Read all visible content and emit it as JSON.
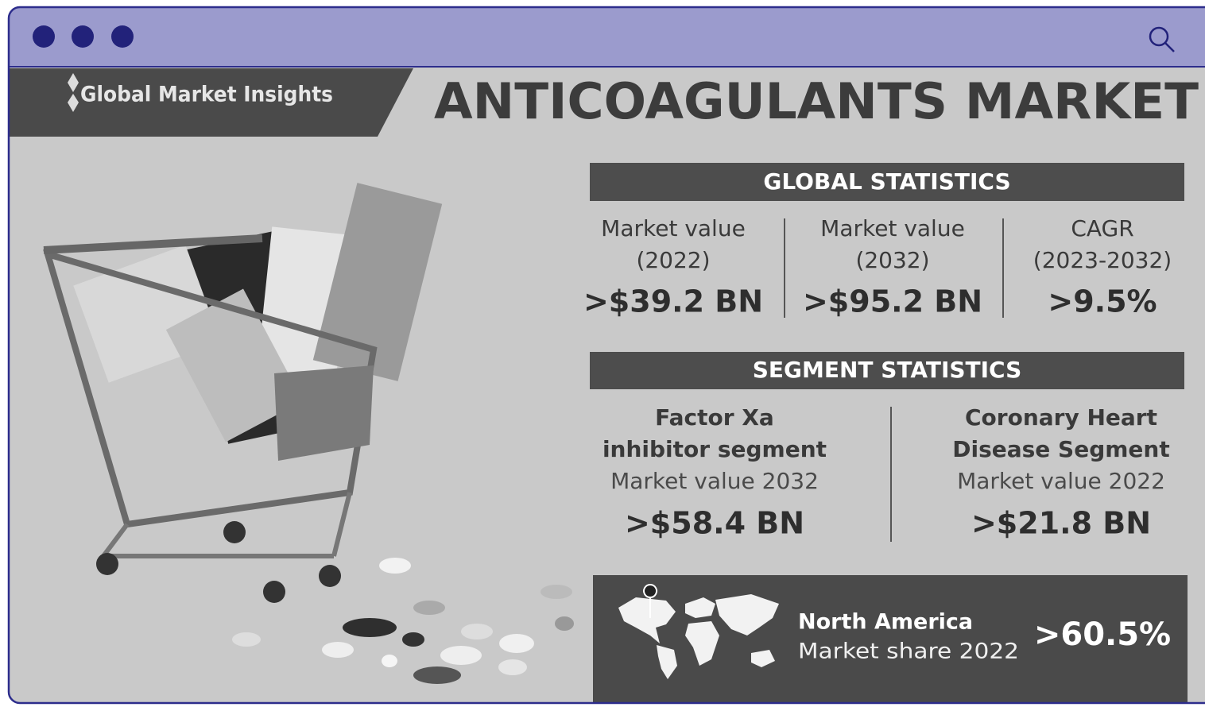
{
  "header": {
    "logo": "Global Market Insights",
    "title": "ANTICOAGULANTS MARKET"
  },
  "global_statistics": {
    "heading": "GLOBAL STATISTICS",
    "items": [
      {
        "label": [
          "Market value",
          "(2022)"
        ],
        "value": ">$39.2 BN"
      },
      {
        "label": [
          "Market value",
          "(2032)"
        ],
        "value": ">$95.2 BN"
      },
      {
        "label": [
          "CAGR",
          "(2023-2032)"
        ],
        "value": ">9.5%"
      }
    ]
  },
  "segment_statistics": {
    "heading": "SEGMENT STATISTICS",
    "items": [
      {
        "name": [
          "Factor Xa",
          "inhibitor segment"
        ],
        "metric": "Market value 2032",
        "value": ">$58.4 BN"
      },
      {
        "name": [
          "Coronary Heart",
          "Disease Segment"
        ],
        "metric": "Market value 2022",
        "value": ">$21.8 BN"
      }
    ]
  },
  "regional": {
    "region": "North America",
    "metric": "Market share 2022",
    "value": ">60.5%"
  }
}
